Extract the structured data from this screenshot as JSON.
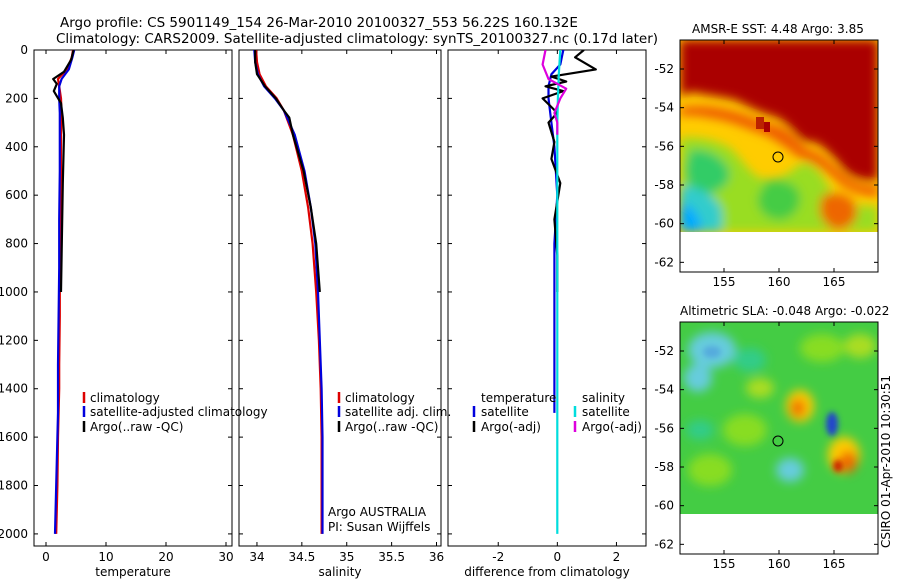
{
  "figure": {
    "title_line1": "Argo profile: CS 5901149_154 26-Mar-2010 20100327_553 56.22S 160.132E",
    "title_line2": "Climatology: CARS2009. Satellite-adjusted climatology: synTS_20100327.nc (0.17d later)",
    "credits": [
      "Argo AUSTRALIA",
      "PI: Susan Wijffels"
    ],
    "timestamp": "CSIRO 01-Apr-2010 10:30:51"
  },
  "chart_data": [
    {
      "type": "line",
      "id": "temperature",
      "xlabel": "temperature",
      "ylabel": "",
      "xlim": [
        -2,
        31
      ],
      "ylim": [
        2050,
        0
      ],
      "xticks": [
        0,
        10,
        20,
        30
      ],
      "yticks": [
        0,
        200,
        400,
        600,
        800,
        1000,
        1200,
        1400,
        1600,
        1800,
        2000
      ],
      "legend": [
        "climatology",
        "satellite-adjusted climatology",
        "Argo(..raw -QC)"
      ],
      "series": [
        {
          "name": "climatology",
          "color": "#dd0000",
          "x": [
            4.5,
            4.3,
            3.5,
            2.0,
            2.2,
            2.5,
            2.6,
            2.5,
            2.5,
            2.4,
            2.3,
            2.3,
            2.2,
            2.2,
            2.1,
            2.0,
            1.9,
            1.8,
            1.7
          ],
          "y": [
            0,
            30,
            80,
            120,
            150,
            200,
            260,
            350,
            500,
            700,
            900,
            1100,
            1300,
            1400,
            1500,
            1600,
            1800,
            1900,
            2000
          ]
        },
        {
          "name": "satellite-adjusted climatology",
          "color": "#0000dd",
          "x": [
            4.7,
            4.4,
            3.8,
            2.6,
            2.2,
            2.2,
            2.3,
            2.3,
            2.3,
            2.2,
            2.2,
            2.1,
            2.0,
            2.0,
            1.8,
            1.6,
            1.5
          ],
          "y": [
            0,
            30,
            80,
            120,
            150,
            200,
            260,
            350,
            500,
            700,
            900,
            1100,
            1300,
            1500,
            1700,
            1900,
            2000
          ]
        },
        {
          "name": "Argo(..raw -QC)",
          "color": "#000000",
          "x": [
            4.6,
            4.2,
            3.0,
            1.2,
            1.8,
            1.3,
            2.5,
            2.8,
            3.0,
            2.9,
            2.8,
            2.7,
            2.6,
            2.5
          ],
          "y": [
            0,
            40,
            90,
            120,
            140,
            170,
            220,
            280,
            350,
            450,
            550,
            700,
            850,
            1000
          ]
        }
      ]
    },
    {
      "type": "line",
      "id": "salinity",
      "xlabel": "salinity",
      "xlim": [
        33.8,
        36.05
      ],
      "ylim": [
        2050,
        0
      ],
      "xticks": [
        34,
        34.5,
        35,
        35.5,
        36
      ],
      "legend": [
        "climatology",
        "satellite adj. clim.",
        "Argo(..raw -QC)"
      ],
      "series": [
        {
          "name": "climatology",
          "color": "#dd0000",
          "x": [
            33.99,
            34.0,
            34.03,
            34.1,
            34.22,
            34.3,
            34.4,
            34.5,
            34.57,
            34.62,
            34.66,
            34.69,
            34.71,
            34.72,
            34.72,
            34.72
          ],
          "y": [
            0,
            50,
            100,
            150,
            200,
            250,
            350,
            500,
            650,
            800,
            1000,
            1200,
            1400,
            1600,
            1800,
            2000
          ]
        },
        {
          "name": "satellite adj. clim.",
          "color": "#0000dd",
          "x": [
            33.97,
            33.98,
            34.01,
            34.08,
            34.2,
            34.3,
            34.42,
            34.53,
            34.6,
            34.65,
            34.68,
            34.7,
            34.72,
            34.73,
            34.73,
            34.73
          ],
          "y": [
            0,
            50,
            100,
            150,
            200,
            250,
            350,
            500,
            650,
            800,
            1000,
            1200,
            1400,
            1600,
            1800,
            2000
          ]
        },
        {
          "name": "Argo(..raw -QC)",
          "color": "#000000",
          "x": [
            33.98,
            33.98,
            34.0,
            34.09,
            34.21,
            34.3,
            34.36,
            34.4,
            34.52,
            34.6,
            34.66,
            34.7
          ],
          "y": [
            0,
            50,
            100,
            150,
            200,
            250,
            280,
            350,
            500,
            650,
            800,
            1000
          ]
        }
      ]
    },
    {
      "type": "line",
      "id": "difference",
      "xlabel": "difference from climatology",
      "xlim": [
        -3.7,
        3.0
      ],
      "ylim": [
        2050,
        0
      ],
      "xticks": [
        -2,
        0,
        2
      ],
      "legend_columns": [
        {
          "heading": "temperature",
          "items": [
            "satellite",
            "Argo(-adj)"
          ]
        },
        {
          "heading": "salinity",
          "items": [
            "satellite",
            "Argo(-adj)"
          ]
        }
      ],
      "series": [
        {
          "name": "temperature satellite",
          "color": "#0000dd",
          "x": [
            0.2,
            0.1,
            -0.2,
            -0.3,
            -0.3,
            -0.2,
            -0.1,
            0.0,
            -0.1,
            -0.1,
            -0.1,
            -0.1,
            -0.1
          ],
          "y": [
            0,
            60,
            100,
            150,
            200,
            300,
            400,
            600,
            800,
            1000,
            1200,
            1400,
            1500
          ]
        },
        {
          "name": "temperature Argo(-adj)",
          "color": "#000000",
          "x": [
            0.9,
            0.6,
            1.3,
            -0.2,
            0.3,
            -0.4,
            0.2,
            -0.5,
            0.0,
            -0.3,
            -0.1,
            -0.2,
            0.1,
            -0.1,
            0.0,
            0.0
          ],
          "y": [
            0,
            30,
            80,
            110,
            130,
            150,
            170,
            200,
            260,
            300,
            380,
            450,
            550,
            700,
            850,
            1000
          ]
        },
        {
          "name": "salinity satellite",
          "color": "#00dddd",
          "x": [
            0.1,
            0.05,
            0.02,
            0.0,
            0.0,
            0.0,
            0.0,
            0.0,
            0.0,
            0.0,
            0.0,
            0.0
          ],
          "y": [
            0,
            100,
            200,
            300,
            400,
            600,
            800,
            1000,
            1200,
            1400,
            1800,
            2000
          ]
        },
        {
          "name": "salinity Argo(-adj)",
          "color": "#dd00dd",
          "x": [
            -0.4,
            -0.5,
            -0.3,
            0.3,
            0.1,
            -0.1,
            0.0,
            0.0
          ],
          "y": [
            0,
            60,
            120,
            160,
            200,
            260,
            300,
            350
          ]
        }
      ]
    },
    {
      "type": "heatmap",
      "id": "sst-map",
      "title": "AMSR-E SST: 4.48 Argo: 3.85",
      "xlim": [
        151,
        169
      ],
      "ylim": [
        -62.5,
        -50.5
      ],
      "xticks": [
        155,
        160,
        165
      ],
      "yticks": [
        -52,
        -54,
        -56,
        -58,
        -60,
        -62
      ],
      "data_extent": [
        151,
        169,
        -60,
        -50.5
      ],
      "float_position": [
        160.132,
        -56.22
      ]
    },
    {
      "type": "heatmap",
      "id": "sla-map",
      "title": "Altimetric SLA: -0.048 Argo: -0.022",
      "xlim": [
        151,
        169
      ],
      "ylim": [
        -62.5,
        -50.5
      ],
      "xticks": [
        155,
        160,
        165
      ],
      "yticks": [
        -52,
        -54,
        -56,
        -58,
        -60,
        -62
      ],
      "data_extent": [
        151,
        169,
        -60,
        -50.5
      ],
      "float_position": [
        160.132,
        -56.22
      ]
    }
  ]
}
